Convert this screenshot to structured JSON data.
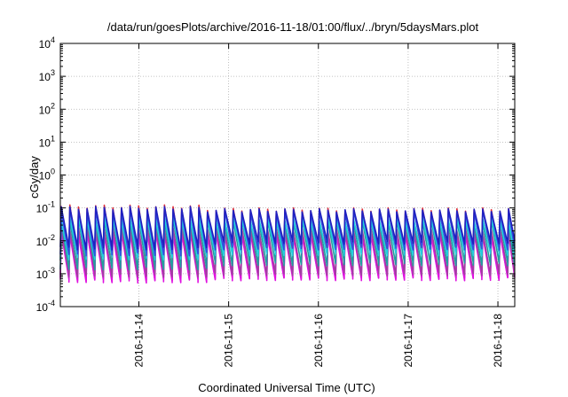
{
  "chart_data": {
    "type": "line",
    "title": "/data/run/goesPlots/archive/2016-11-18/01:00/flux/../bryn/5daysMars.plot",
    "xlabel": "Coordinated Universal Time (UTC)",
    "ylabel": "cGy/day",
    "yscale": "log",
    "ylim": [
      0.0001,
      10000
    ],
    "xlim": [
      "2016-11-13T03:00",
      "2016-11-18T04:30"
    ],
    "grid": true,
    "legend": "none",
    "x_ticks": [
      "2016-11-14",
      "2016-11-15",
      "2016-11-16",
      "2016-11-17",
      "2016-11-18"
    ],
    "y_ticks": [
      {
        "value": 0.0001,
        "base": "10",
        "exp": "-4"
      },
      {
        "value": 0.001,
        "base": "10",
        "exp": "-3"
      },
      {
        "value": 0.01,
        "base": "10",
        "exp": "-2"
      },
      {
        "value": 0.1,
        "base": "10",
        "exp": "-1"
      },
      {
        "value": 1,
        "base": "10",
        "exp": "0"
      },
      {
        "value": 10,
        "base": "10",
        "exp": "1"
      },
      {
        "value": 100,
        "base": "10",
        "exp": "2"
      },
      {
        "value": 1000,
        "base": "10",
        "exp": "3"
      },
      {
        "value": 10000,
        "base": "10",
        "exp": "4"
      }
    ],
    "pattern": {
      "description": "sawtooth: sharp rise at each period start then decay",
      "period_hours": 2.3,
      "first_peak": "2016-11-13T03:00",
      "early_period_end": "2016-11-14T17:00"
    },
    "series": [
      {
        "color": "#e0303a",
        "peak": 0.09,
        "trough": 0.0045,
        "peak_early": 0.11,
        "trough_early": 0.0025
      },
      {
        "color": "#c020c0",
        "peak": 0.018,
        "trough": 0.0008,
        "peak_early": 0.02,
        "trough_early": 0.0007
      },
      {
        "color": "#e010e0",
        "peak": 0.015,
        "trough": 0.0007,
        "peak_early": 0.017,
        "trough_early": 0.0006
      },
      {
        "color": "#a040a0",
        "peak": 0.022,
        "trough": 0.001,
        "peak_early": 0.025,
        "trough_early": 0.0009
      },
      {
        "color": "#20a0a0",
        "peak": 0.04,
        "trough": 0.002,
        "peak_early": 0.045,
        "trough_early": 0.0015
      },
      {
        "color": "#20d0e0",
        "peak": 0.045,
        "trough": 0.004,
        "peak_early": 0.05,
        "trough_early": 0.003
      },
      {
        "color": "#3050e0",
        "peak": 0.075,
        "trough": 0.006,
        "peak_early": 0.085,
        "trough_early": 0.004
      },
      {
        "color": "#2020c0",
        "peak": 0.085,
        "trough": 0.009,
        "peak_early": 0.1,
        "trough_early": 0.006
      }
    ]
  }
}
